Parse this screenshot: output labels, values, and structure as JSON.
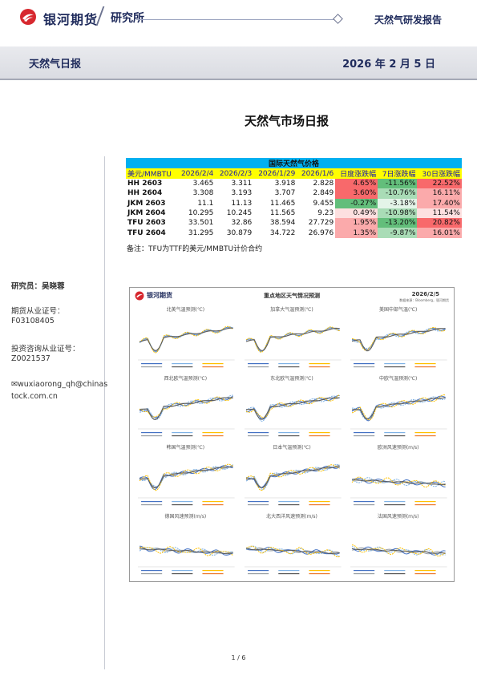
{
  "header": {
    "company": "银河期货",
    "department": "研究所",
    "report_type": "天然气研发报告"
  },
  "banner": {
    "title": "天然气日报",
    "date": "2026 年 2 月 5 日"
  },
  "main_title": "天然气市场日报",
  "sidebar": {
    "researcher": "研究员：吴晓蓉",
    "cert_label": "期货从业证号：",
    "cert_no": "F03108405",
    "invest_label": "投资咨询从业证号：",
    "invest_no": "Z0021537",
    "email_line1": "wuxiaorong_qh@chinas",
    "email_line2": "tock.com.cn"
  },
  "table": {
    "title": "国际天然气价格",
    "headers": [
      "美元/MMBTU",
      "2026/2/4",
      "2026/2/3",
      "2026/1/29",
      "2026/1/6",
      "日度涨跌幅",
      "7日涨跌幅",
      "30日涨跌幅"
    ],
    "rows": [
      {
        "name": "HH 2603",
        "v1": "3.465",
        "v2": "3.311",
        "v3": "3.918",
        "v4": "2.828",
        "d1": "4.65%",
        "d7": "-11.56%",
        "d30": "22.52%"
      },
      {
        "name": "HH 2604",
        "v1": "3.308",
        "v2": "3.193",
        "v3": "3.707",
        "v4": "2.849",
        "d1": "3.60%",
        "d7": "-10.76%",
        "d30": "16.11%"
      },
      {
        "name": "JKM 2603",
        "v1": "11.1",
        "v2": "11.13",
        "v3": "11.465",
        "v4": "9.455",
        "d1": "-0.27%",
        "d7": "-3.18%",
        "d30": "17.40%"
      },
      {
        "name": "JKM 2604",
        "v1": "10.295",
        "v2": "10.245",
        "v3": "11.565",
        "v4": "9.23",
        "d1": "0.49%",
        "d7": "-10.98%",
        "d30": "11.54%"
      },
      {
        "name": "TFU 2603",
        "v1": "33.501",
        "v2": "32.86",
        "v3": "38.594",
        "v4": "27.729",
        "d1": "1.95%",
        "d7": "-13.20%",
        "d30": "20.82%"
      },
      {
        "name": "TFU 2604",
        "v1": "31.295",
        "v2": "30.879",
        "v3": "34.722",
        "v4": "26.976",
        "d1": "1.35%",
        "d7": "-9.87%",
        "d30": "16.01%"
      }
    ],
    "note": "备注：TFU为TTF的美元/MMBTU计价合约"
  },
  "panel": {
    "logo": "银河期货",
    "title": "重点地区天气情况预测",
    "date": "2026/2/5",
    "subtitle": "数据来源：Bloomberg，银河期货",
    "charts": [
      {
        "label": "北美气温预测(℃)"
      },
      {
        "label": "加拿大气温预测(℃)"
      },
      {
        "label": "美国中部气温(℃)"
      },
      {
        "label": "西北欧气温预测(℃)"
      },
      {
        "label": "东北欧气温预测(℃)"
      },
      {
        "label": "中欧气温预测(℃)"
      },
      {
        "label": "韩国气温预测(℃)"
      },
      {
        "label": "日本气温预测(℃)"
      },
      {
        "label": "欧洲风速预测(m/s)"
      },
      {
        "label": "德国风速预测(m/s)"
      },
      {
        "label": "北大西洋风速预测(m/s)"
      },
      {
        "label": "法国风速预测(m/s)"
      }
    ]
  },
  "colors": {
    "pos_strong": "#f8696b",
    "neg_strong": "#63be7b",
    "table_title_bg": "#00b0f0",
    "table_head_bg": "#ffff00"
  },
  "page": "1 / 6"
}
